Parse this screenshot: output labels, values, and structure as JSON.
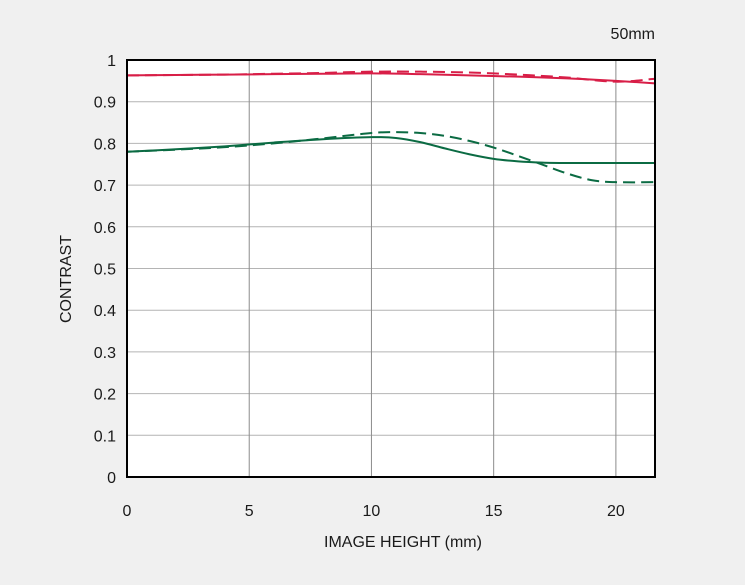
{
  "chart_data": {
    "type": "line",
    "title": "",
    "annotation": "50mm",
    "xlabel": "IMAGE HEIGHT (mm)",
    "ylabel": "CONTRAST",
    "xlim": [
      0,
      21.6
    ],
    "ylim": [
      0,
      1
    ],
    "grid": true,
    "x_ticks": [
      0,
      5,
      10,
      15,
      20
    ],
    "y_ticks": [
      0,
      0.1,
      0.2,
      0.3,
      0.4,
      0.5,
      0.6,
      0.7,
      0.8,
      0.9,
      1
    ],
    "x_tick_labels": [
      "0",
      "5",
      "10",
      "15",
      "20"
    ],
    "y_tick_labels": [
      "0",
      "0.1",
      "0.2",
      "0.3",
      "0.4",
      "0.5",
      "0.6",
      "0.7",
      "0.8",
      "0.9",
      "1"
    ],
    "series": [
      {
        "color": "#d81e47",
        "style": "solid",
        "x": [
          0,
          2,
          4,
          6,
          8,
          10,
          12,
          14,
          16,
          18,
          20,
          21.6
        ],
        "y": [
          0.963,
          0.964,
          0.965,
          0.966,
          0.967,
          0.968,
          0.966,
          0.963,
          0.96,
          0.956,
          0.95,
          0.944
        ]
      },
      {
        "color": "#d81e47",
        "style": "dashed",
        "x": [
          0,
          2,
          4,
          6,
          8,
          10,
          12,
          14,
          16,
          18,
          20,
          21.6
        ],
        "y": [
          0.963,
          0.964,
          0.965,
          0.967,
          0.969,
          0.972,
          0.972,
          0.97,
          0.965,
          0.958,
          0.948,
          0.955
        ]
      },
      {
        "color": "#0b6b43",
        "style": "solid",
        "x": [
          0,
          2,
          4,
          6,
          8,
          10,
          11,
          12,
          13,
          14,
          15,
          16,
          17,
          18,
          19,
          20,
          21.6
        ],
        "y": [
          0.78,
          0.786,
          0.793,
          0.802,
          0.81,
          0.815,
          0.813,
          0.803,
          0.788,
          0.774,
          0.763,
          0.757,
          0.754,
          0.753,
          0.753,
          0.753,
          0.753
        ]
      },
      {
        "color": "#0b6b43",
        "style": "dashed",
        "x": [
          0,
          2,
          4,
          6,
          8,
          10,
          11,
          12,
          13,
          14,
          15,
          16,
          17,
          18,
          19,
          20,
          21.6
        ],
        "y": [
          0.78,
          0.785,
          0.791,
          0.8,
          0.812,
          0.825,
          0.827,
          0.825,
          0.818,
          0.806,
          0.79,
          0.77,
          0.749,
          0.728,
          0.712,
          0.707,
          0.707
        ]
      }
    ]
  }
}
